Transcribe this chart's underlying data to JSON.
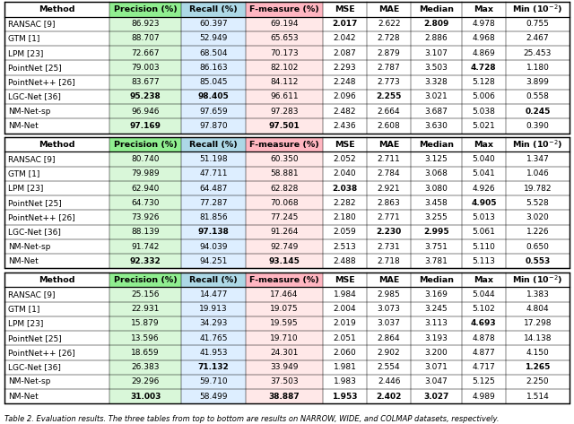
{
  "tables": [
    {
      "rows": [
        [
          "RANSAC [9]",
          "86.923",
          "60.397",
          "69.194",
          "2.017",
          "2.622",
          "2.809",
          "4.978",
          "0.755"
        ],
        [
          "GTM [1]",
          "88.707",
          "52.949",
          "65.653",
          "2.042",
          "2.728",
          "2.886",
          "4.968",
          "2.467"
        ],
        [
          "LPM [23]",
          "72.667",
          "68.504",
          "70.173",
          "2.087",
          "2.879",
          "3.107",
          "4.869",
          "25.453"
        ],
        [
          "PointNet [25]",
          "79.003",
          "86.163",
          "82.102",
          "2.293",
          "2.787",
          "3.503",
          "4.728",
          "1.180"
        ],
        [
          "PointNet++ [26]",
          "83.677",
          "85.045",
          "84.112",
          "2.248",
          "2.773",
          "3.328",
          "5.128",
          "3.899"
        ],
        [
          "LGC-Net [36]",
          "95.238",
          "98.405",
          "96.611",
          "2.096",
          "2.255",
          "3.021",
          "5.006",
          "0.558"
        ],
        [
          "NM-Net-sp",
          "96.946",
          "97.659",
          "97.283",
          "2.482",
          "2.664",
          "3.687",
          "5.038",
          "0.245"
        ],
        [
          "NM-Net",
          "97.169",
          "97.870",
          "97.501",
          "2.436",
          "2.608",
          "3.630",
          "5.021",
          "0.390"
        ]
      ],
      "bold": [
        [
          false,
          false,
          false,
          false,
          true,
          false,
          true,
          false,
          false
        ],
        [
          false,
          false,
          false,
          false,
          false,
          false,
          false,
          false,
          false
        ],
        [
          false,
          false,
          false,
          false,
          false,
          false,
          false,
          false,
          false
        ],
        [
          false,
          false,
          false,
          false,
          false,
          false,
          false,
          true,
          false
        ],
        [
          false,
          false,
          false,
          false,
          false,
          false,
          false,
          false,
          false
        ],
        [
          false,
          true,
          true,
          false,
          false,
          true,
          false,
          false,
          false
        ],
        [
          false,
          false,
          false,
          false,
          false,
          false,
          false,
          false,
          true
        ],
        [
          false,
          true,
          false,
          true,
          false,
          false,
          false,
          false,
          false
        ]
      ]
    },
    {
      "rows": [
        [
          "RANSAC [9]",
          "80.740",
          "51.198",
          "60.350",
          "2.052",
          "2.711",
          "3.125",
          "5.040",
          "1.347"
        ],
        [
          "GTM [1]",
          "79.989",
          "47.711",
          "58.881",
          "2.040",
          "2.784",
          "3.068",
          "5.041",
          "1.046"
        ],
        [
          "LPM [23]",
          "62.940",
          "64.487",
          "62.828",
          "2.038",
          "2.921",
          "3.080",
          "4.926",
          "19.782"
        ],
        [
          "PointNet [25]",
          "64.730",
          "77.287",
          "70.068",
          "2.282",
          "2.863",
          "3.458",
          "4.905",
          "5.528"
        ],
        [
          "PointNet++ [26]",
          "73.926",
          "81.856",
          "77.245",
          "2.180",
          "2.771",
          "3.255",
          "5.013",
          "3.020"
        ],
        [
          "LGC-Net [36]",
          "88.139",
          "97.138",
          "91.264",
          "2.059",
          "2.230",
          "2.995",
          "5.061",
          "1.226"
        ],
        [
          "NM-Net-sp",
          "91.742",
          "94.039",
          "92.749",
          "2.513",
          "2.731",
          "3.751",
          "5.110",
          "0.650"
        ],
        [
          "NM-Net",
          "92.332",
          "94.251",
          "93.145",
          "2.488",
          "2.718",
          "3.781",
          "5.113",
          "0.553"
        ]
      ],
      "bold": [
        [
          false,
          false,
          false,
          false,
          false,
          false,
          false,
          false,
          false
        ],
        [
          false,
          false,
          false,
          false,
          false,
          false,
          false,
          false,
          false
        ],
        [
          false,
          false,
          false,
          false,
          true,
          false,
          false,
          false,
          false
        ],
        [
          false,
          false,
          false,
          false,
          false,
          false,
          false,
          true,
          false
        ],
        [
          false,
          false,
          false,
          false,
          false,
          false,
          false,
          false,
          false
        ],
        [
          false,
          false,
          true,
          false,
          false,
          true,
          true,
          false,
          false
        ],
        [
          false,
          false,
          false,
          false,
          false,
          false,
          false,
          false,
          false
        ],
        [
          false,
          true,
          false,
          true,
          false,
          false,
          false,
          false,
          true
        ]
      ]
    },
    {
      "rows": [
        [
          "RANSAC [9]",
          "25.156",
          "14.477",
          "17.464",
          "1.984",
          "2.985",
          "3.169",
          "5.044",
          "1.383"
        ],
        [
          "GTM [1]",
          "22.931",
          "19.913",
          "19.075",
          "2.004",
          "3.073",
          "3.245",
          "5.102",
          "4.804"
        ],
        [
          "LPM [23]",
          "15.879",
          "34.293",
          "19.595",
          "2.019",
          "3.037",
          "3.113",
          "4.693",
          "17.298"
        ],
        [
          "PointNet [25]",
          "13.596",
          "41.765",
          "19.710",
          "2.051",
          "2.864",
          "3.193",
          "4.878",
          "14.138"
        ],
        [
          "PointNet++ [26]",
          "18.659",
          "41.953",
          "24.301",
          "2.060",
          "2.902",
          "3.200",
          "4.877",
          "4.150"
        ],
        [
          "LGC-Net [36]",
          "26.383",
          "71.132",
          "33.949",
          "1.981",
          "2.554",
          "3.071",
          "4.717",
          "1.265"
        ],
        [
          "NM-Net-sp",
          "29.296",
          "59.710",
          "37.503",
          "1.983",
          "2.446",
          "3.047",
          "5.125",
          "2.250"
        ],
        [
          "NM-Net",
          "31.003",
          "58.499",
          "38.887",
          "1.953",
          "2.402",
          "3.027",
          "4.989",
          "1.514"
        ]
      ],
      "bold": [
        [
          false,
          false,
          false,
          false,
          false,
          false,
          false,
          false,
          false
        ],
        [
          false,
          false,
          false,
          false,
          false,
          false,
          false,
          false,
          false
        ],
        [
          false,
          false,
          false,
          false,
          false,
          false,
          false,
          true,
          false
        ],
        [
          false,
          false,
          false,
          false,
          false,
          false,
          false,
          false,
          false
        ],
        [
          false,
          false,
          false,
          false,
          false,
          false,
          false,
          false,
          false
        ],
        [
          false,
          false,
          true,
          false,
          false,
          false,
          false,
          false,
          true
        ],
        [
          false,
          false,
          false,
          false,
          false,
          false,
          false,
          false,
          false
        ],
        [
          false,
          true,
          false,
          true,
          true,
          true,
          true,
          false,
          false
        ]
      ]
    }
  ],
  "headers": [
    "Method",
    "Precision (%)",
    "Recall (%)",
    "F-measure (%)",
    "MSE",
    "MAE",
    "Median",
    "Max",
    "Min (10$^{-2}$)"
  ],
  "col_header_colors": [
    "#ffffff",
    "#90EE90",
    "#ADD8E6",
    "#FFB6C1",
    "#ffffff",
    "#ffffff",
    "#ffffff",
    "#ffffff",
    "#ffffff"
  ],
  "col_data_colors": [
    "#ffffff",
    "#d9f7d9",
    "#ddeeff",
    "#ffe8e8",
    "#ffffff",
    "#ffffff",
    "#ffffff",
    "#ffffff",
    "#ffffff"
  ],
  "caption": "Table 2. Evaluation results. The three tables from top to bottom are results on NARROW, WIDE, and COLMAP datasets, respectively.",
  "col_w_raw": [
    1.62,
    1.1,
    1.0,
    1.18,
    0.68,
    0.68,
    0.78,
    0.68,
    0.98
  ],
  "font_size": 6.5,
  "header_font_size": 6.8,
  "caption_font_size": 6.0
}
